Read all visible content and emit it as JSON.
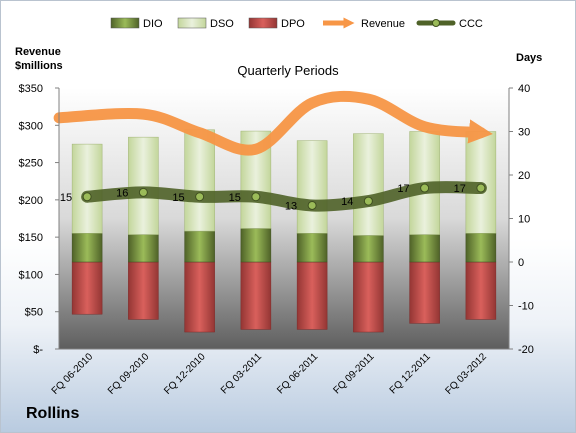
{
  "chart_data": {
    "type": "bar",
    "company": "Rollins",
    "title": "Quarterly Periods",
    "y_left_label_line1": "Revenue",
    "y_left_label_line2": "$millions",
    "y_right_label": "Days",
    "y_left_lim": [
      0,
      350
    ],
    "y_right_lim": [
      -20,
      40
    ],
    "y_left_ticks": [
      "$-",
      "$50",
      "$100",
      "$150",
      "$200",
      "$250",
      "$300",
      "$350"
    ],
    "y_right_ticks": [
      "-20",
      "-10",
      "0",
      "10",
      "20",
      "30",
      "40"
    ],
    "categories": [
      "FQ 06-2010",
      "FQ 09-2010",
      "FQ 12-2010",
      "FQ 03-2011",
      "FQ 06-2011",
      "FQ 09-2011",
      "FQ 12-2011",
      "FQ 03-2012"
    ],
    "legend": [
      {
        "name": "DIO",
        "kind": "bar",
        "color": "#77933c"
      },
      {
        "name": "DSO",
        "kind": "bar",
        "color": "#d7e4bd"
      },
      {
        "name": "DPO",
        "kind": "bar",
        "color": "#c0504d"
      },
      {
        "name": "Revenue",
        "kind": "arrow",
        "color": "#f79646"
      },
      {
        "name": "CCC",
        "kind": "line",
        "color": "#4f6228"
      }
    ],
    "series": [
      {
        "name": "DIO",
        "axis": "right",
        "values": [
          6.6,
          6.3,
          7.1,
          7.7,
          6.6,
          6.1,
          6.3,
          6.6
        ]
      },
      {
        "name": "DSO",
        "axis": "right",
        "values": [
          20.5,
          22.4,
          23.3,
          22.4,
          21.3,
          23.4,
          23.7,
          23.4
        ]
      },
      {
        "name": "DPO",
        "axis": "right",
        "values": [
          -12,
          -13.2,
          -16.1,
          -15.5,
          -15.5,
          -16.1,
          -14.1,
          -13.2
        ]
      },
      {
        "name": "Revenue",
        "axis": "left",
        "values": [
          310,
          315,
          290,
          268,
          330,
          335,
          298,
          290
        ]
      },
      {
        "name": "CCC",
        "axis": "right",
        "values": [
          15,
          16,
          15,
          15,
          13,
          14,
          17,
          17
        ]
      }
    ],
    "ccc_labels": [
      "15",
      "16",
      "15",
      "15",
      "13",
      "14",
      "17",
      "17"
    ]
  }
}
